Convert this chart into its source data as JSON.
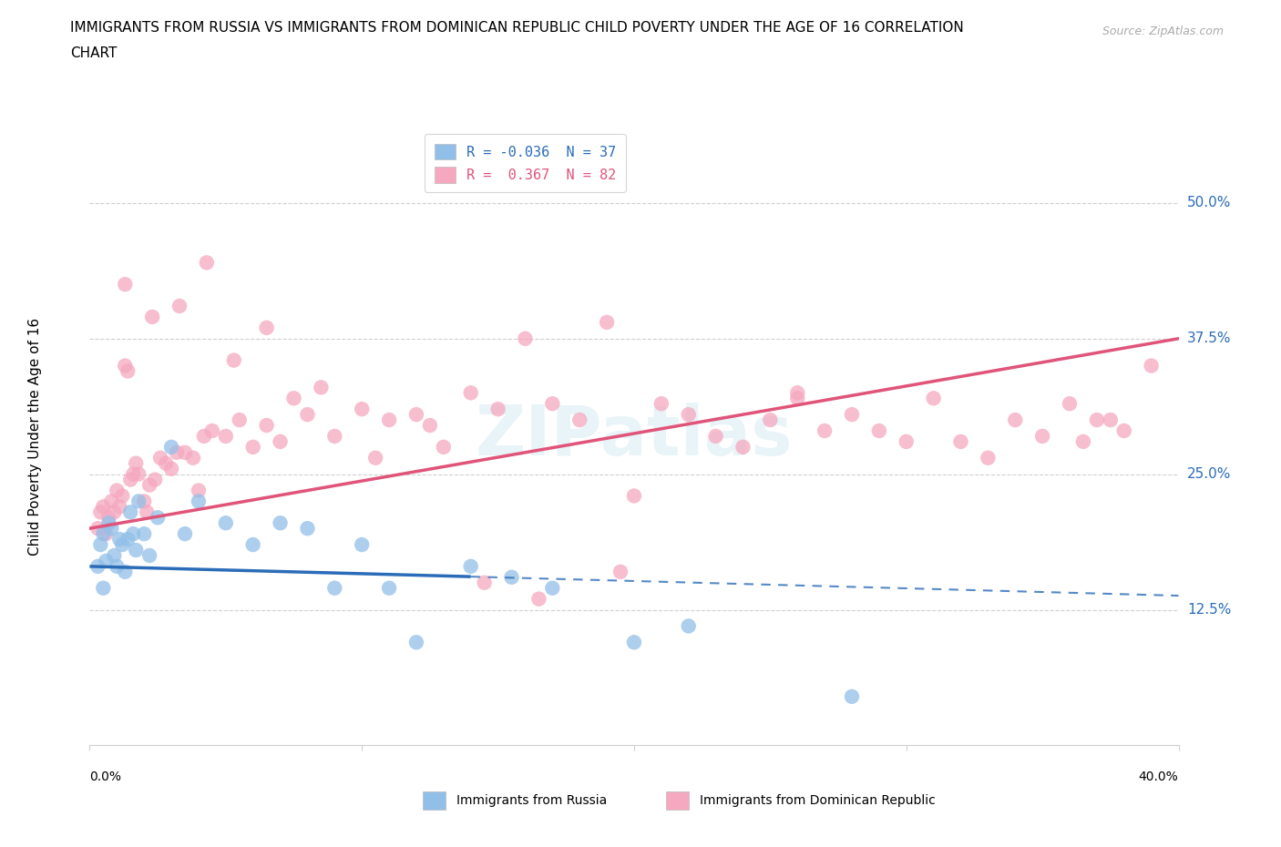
{
  "title_line1": "IMMIGRANTS FROM RUSSIA VS IMMIGRANTS FROM DOMINICAN REPUBLIC CHILD POVERTY UNDER THE AGE OF 16 CORRELATION",
  "title_line2": "CHART",
  "source": "Source: ZipAtlas.com",
  "ylabel": "Child Poverty Under the Age of 16",
  "yticks": [
    12.5,
    25.0,
    37.5,
    50.0
  ],
  "ytick_labels": [
    "12.5%",
    "25.0%",
    "37.5%",
    "50.0%"
  ],
  "xlim": [
    0.0,
    40.0
  ],
  "ylim": [
    0.0,
    57.0
  ],
  "legend_russia_label": "R = -0.036  N = 37",
  "legend_dr_label": "R =  0.367  N = 82",
  "russia_color": "#92bfe8",
  "dr_color": "#f5a8bf",
  "russia_line_color": "#2b6cb8",
  "dr_line_color": "#e0547a",
  "grid_color": "#d0d0d0",
  "russia_trend_x": [
    0.0,
    40.0
  ],
  "russia_trend_y": [
    16.5,
    13.8
  ],
  "russia_solid_end_x": 14.0,
  "dr_trend_x": [
    0.0,
    40.0
  ],
  "dr_trend_y": [
    20.0,
    37.5
  ],
  "russia_scatter_x": [
    0.3,
    0.4,
    0.5,
    0.5,
    0.6,
    0.7,
    0.8,
    0.9,
    1.0,
    1.1,
    1.2,
    1.3,
    1.4,
    1.5,
    1.6,
    1.7,
    1.8,
    2.0,
    2.2,
    2.5,
    3.0,
    3.5,
    4.0,
    5.0,
    6.0,
    7.0,
    8.0,
    9.0,
    10.0,
    11.0,
    12.0,
    14.0,
    15.5,
    17.0,
    20.0,
    22.0,
    28.0
  ],
  "russia_scatter_y": [
    16.5,
    18.5,
    19.5,
    14.5,
    17.0,
    20.5,
    20.0,
    17.5,
    16.5,
    19.0,
    18.5,
    16.0,
    19.0,
    21.5,
    19.5,
    18.0,
    22.5,
    19.5,
    17.5,
    21.0,
    27.5,
    19.5,
    22.5,
    20.5,
    18.5,
    20.5,
    20.0,
    14.5,
    18.5,
    14.5,
    9.5,
    16.5,
    15.5,
    14.5,
    9.5,
    11.0,
    4.5
  ],
  "dr_scatter_x": [
    0.3,
    0.4,
    0.5,
    0.6,
    0.7,
    0.8,
    0.9,
    1.0,
    1.1,
    1.2,
    1.3,
    1.4,
    1.5,
    1.6,
    1.7,
    1.8,
    2.0,
    2.1,
    2.2,
    2.4,
    2.6,
    2.8,
    3.0,
    3.2,
    3.5,
    3.8,
    4.0,
    4.2,
    4.5,
    5.0,
    5.5,
    6.0,
    6.5,
    7.0,
    7.5,
    8.0,
    9.0,
    10.0,
    11.0,
    12.0,
    13.0,
    14.0,
    15.0,
    16.0,
    17.0,
    18.0,
    19.0,
    20.0,
    21.0,
    22.0,
    23.0,
    24.0,
    25.0,
    26.0,
    27.0,
    28.0,
    29.0,
    30.0,
    31.0,
    32.0,
    33.0,
    34.0,
    35.0,
    36.0,
    37.0,
    38.0,
    39.0,
    1.3,
    2.3,
    3.3,
    4.3,
    5.3,
    6.5,
    8.5,
    10.5,
    12.5,
    14.5,
    16.5,
    19.5,
    26.0,
    36.5,
    37.5
  ],
  "dr_scatter_y": [
    20.0,
    21.5,
    22.0,
    19.5,
    21.0,
    22.5,
    21.5,
    23.5,
    22.0,
    23.0,
    35.0,
    34.5,
    24.5,
    25.0,
    26.0,
    25.0,
    22.5,
    21.5,
    24.0,
    24.5,
    26.5,
    26.0,
    25.5,
    27.0,
    27.0,
    26.5,
    23.5,
    28.5,
    29.0,
    28.5,
    30.0,
    27.5,
    29.5,
    28.0,
    32.0,
    30.5,
    28.5,
    31.0,
    30.0,
    30.5,
    27.5,
    32.5,
    31.0,
    37.5,
    31.5,
    30.0,
    39.0,
    23.0,
    31.5,
    30.5,
    28.5,
    27.5,
    30.0,
    32.5,
    29.0,
    30.5,
    29.0,
    28.0,
    32.0,
    28.0,
    26.5,
    30.0,
    28.5,
    31.5,
    30.0,
    29.0,
    35.0,
    42.5,
    39.5,
    40.5,
    44.5,
    35.5,
    38.5,
    33.0,
    26.5,
    29.5,
    15.0,
    13.5,
    16.0,
    32.0,
    28.0,
    30.0
  ]
}
